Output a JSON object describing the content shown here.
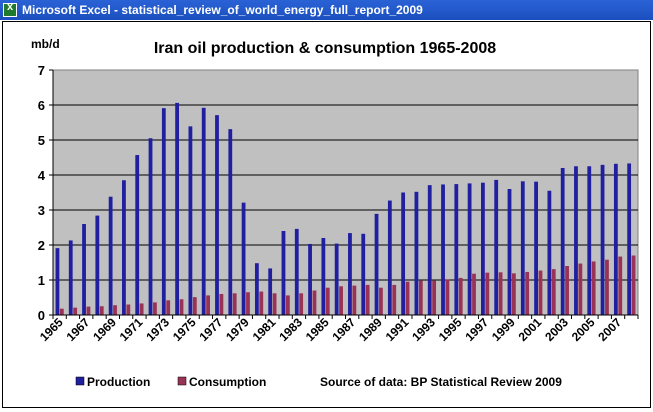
{
  "window": {
    "title": "Microsoft Excel - statistical_review_of_world_energy_full_report_2009",
    "icon": "excel-icon"
  },
  "colors": {
    "plot_bg": "#c0c0c0",
    "production": "#1f1fa0",
    "consumption": "#993355",
    "gridline": "#000000"
  },
  "chart_data": {
    "type": "bar",
    "title": "Iran oil production & consumption 1965-2008",
    "ylabel": "mb/d",
    "xlabel": "",
    "ylim": [
      0,
      7
    ],
    "yticks": [
      0,
      1,
      2,
      3,
      4,
      5,
      6,
      7
    ],
    "grid": true,
    "legend_position": "bottom-left",
    "categories": [
      "1965",
      "1966",
      "1967",
      "1968",
      "1969",
      "1970",
      "1971",
      "1972",
      "1973",
      "1974",
      "1975",
      "1976",
      "1977",
      "1978",
      "1979",
      "1980",
      "1981",
      "1982",
      "1983",
      "1984",
      "1985",
      "1986",
      "1987",
      "1988",
      "1989",
      "1990",
      "1991",
      "1992",
      "1993",
      "1994",
      "1995",
      "1996",
      "1997",
      "1998",
      "1999",
      "2000",
      "2001",
      "2002",
      "2003",
      "2004",
      "2005",
      "2006",
      "2007",
      "2008"
    ],
    "xtick_labels": [
      "1965",
      "1967",
      "1969",
      "1971",
      "1973",
      "1975",
      "1977",
      "1979",
      "1981",
      "1983",
      "1985",
      "1987",
      "1989",
      "1991",
      "1993",
      "1995",
      "1997",
      "1999",
      "2001",
      "2003",
      "2005",
      "2007"
    ],
    "series": [
      {
        "name": "Production",
        "values": [
          1.91,
          2.13,
          2.6,
          2.84,
          3.38,
          3.85,
          4.57,
          5.05,
          5.91,
          6.06,
          5.39,
          5.92,
          5.71,
          5.31,
          3.21,
          1.48,
          1.33,
          2.4,
          2.46,
          2.03,
          2.2,
          2.04,
          2.34,
          2.32,
          2.89,
          3.27,
          3.5,
          3.52,
          3.71,
          3.73,
          3.74,
          3.76,
          3.78,
          3.86,
          3.6,
          3.82,
          3.81,
          3.55,
          4.2,
          4.25,
          4.25,
          4.29,
          4.32,
          4.33
        ]
      },
      {
        "name": "Consumption",
        "values": [
          0.18,
          0.21,
          0.24,
          0.25,
          0.28,
          0.3,
          0.33,
          0.36,
          0.42,
          0.45,
          0.51,
          0.56,
          0.6,
          0.62,
          0.65,
          0.67,
          0.62,
          0.56,
          0.62,
          0.7,
          0.78,
          0.82,
          0.84,
          0.86,
          0.78,
          0.86,
          0.95,
          0.98,
          0.98,
          1.02,
          1.06,
          1.18,
          1.21,
          1.22,
          1.19,
          1.23,
          1.27,
          1.31,
          1.4,
          1.47,
          1.53,
          1.58,
          1.67,
          1.7
        ]
      }
    ],
    "annotation": "Source of data: BP Statistical Review 2009"
  }
}
